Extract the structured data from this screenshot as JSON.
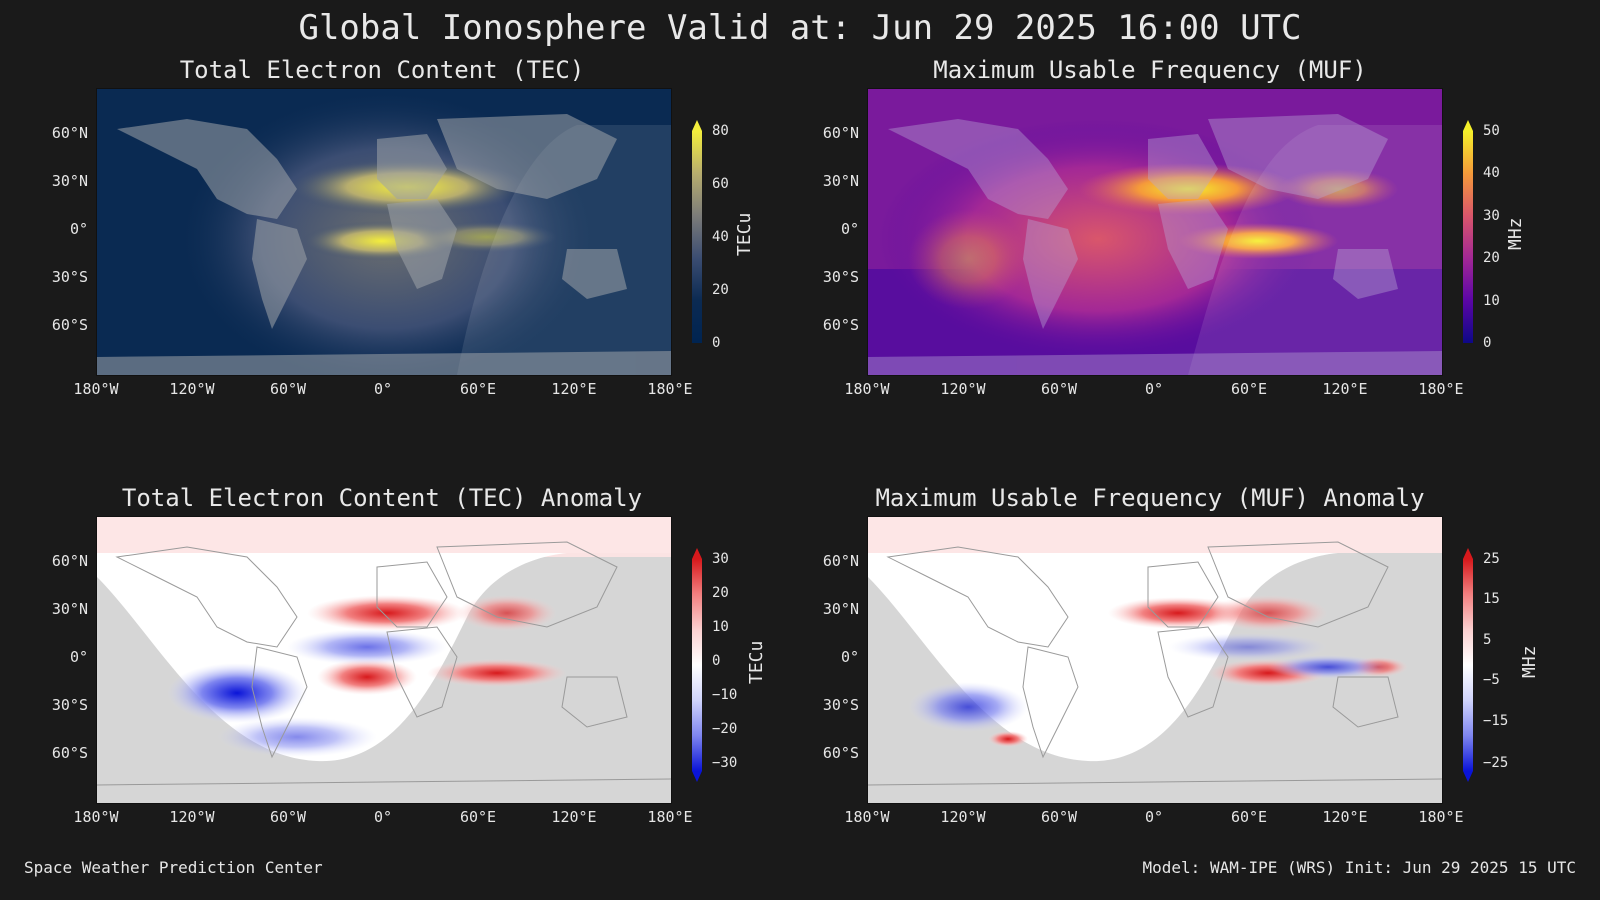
{
  "title": "Global Ionosphere Valid at: Jun 29 2025 16:00 UTC",
  "lat_ticks": [
    "60°N",
    "30°N",
    "0°",
    "30°S",
    "60°S"
  ],
  "lon_ticks": [
    "180°W",
    "120°W",
    "60°W",
    "0°",
    "60°E",
    "120°E",
    "180°E"
  ],
  "panels": [
    {
      "title": "Total Electron Content (TEC)",
      "colorbar": {
        "label": "TECu",
        "ticks": [
          "80",
          "60",
          "40",
          "20",
          "0"
        ],
        "colors": [
          "#f4ee3c",
          "#b7ad6e",
          "#7c7c79",
          "#3b4d72",
          "#0b2a52",
          "#002451"
        ],
        "extend": "max"
      }
    },
    {
      "title": "Maximum Usable Frequency (MUF)",
      "colorbar": {
        "label": "MHz",
        "ticks": [
          "50",
          "40",
          "30",
          "20",
          "10",
          "0"
        ],
        "colors": [
          "#f5f02a",
          "#f59a3a",
          "#d9566b",
          "#a32896",
          "#5b06a6",
          "#0d0887"
        ],
        "extend": "max"
      }
    },
    {
      "title": "Total Electron Content (TEC) Anomaly",
      "colorbar": {
        "label": "TECu",
        "ticks": [
          "30",
          "20",
          "10",
          "0",
          "−10",
          "−20",
          "−30"
        ],
        "colors": [
          "#d7191c",
          "#f28080",
          "#fbd0d0",
          "#ffffff",
          "#d0d4fb",
          "#7f86f0",
          "#0a14d8"
        ],
        "extend": "both"
      }
    },
    {
      "title": "Maximum Usable Frequency (MUF) Anomaly",
      "colorbar": {
        "label": "MHz",
        "ticks": [
          "25",
          "15",
          "5",
          "−5",
          "−15",
          "−25"
        ],
        "colors": [
          "#d7191c",
          "#f28080",
          "#fbd0d0",
          "#ffffff",
          "#d0d4fb",
          "#7f86f0",
          "#0a14d8"
        ],
        "extend": "both"
      }
    }
  ],
  "footer": {
    "left": "Space Weather Prediction Center",
    "right": "Model: WAM-IPE (WRS) Init: Jun 29 2025 15 UTC"
  }
}
